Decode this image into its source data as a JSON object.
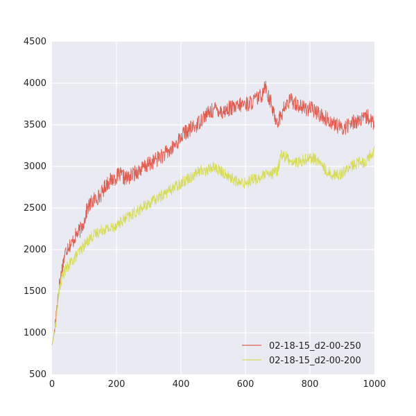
{
  "chart_data": {
    "type": "line",
    "title": "",
    "xlabel": "",
    "ylabel": "",
    "xlim": [
      0,
      1000
    ],
    "ylim": [
      500,
      4500
    ],
    "xticks": [
      "0",
      "200",
      "400",
      "600",
      "800",
      "1000"
    ],
    "yticks": [
      "500",
      "1000",
      "1500",
      "2000",
      "2500",
      "3000",
      "3500",
      "4000",
      "4500"
    ],
    "grid": true,
    "legend_position": "bottom-right",
    "background": "#EAEAF2",
    "series": [
      {
        "name": "02-18-15_d2-00-250",
        "color": "#E05D50",
        "x": [
          0,
          5,
          10,
          15,
          20,
          30,
          40,
          50,
          60,
          70,
          80,
          90,
          100,
          110,
          120,
          130,
          150,
          170,
          190,
          210,
          230,
          250,
          270,
          290,
          310,
          330,
          350,
          370,
          390,
          410,
          430,
          450,
          470,
          490,
          510,
          530,
          550,
          570,
          590,
          610,
          630,
          650,
          660,
          670,
          680,
          690,
          700,
          710,
          720,
          740,
          760,
          780,
          800,
          820,
          840,
          860,
          880,
          900,
          920,
          940,
          960,
          980,
          1000
        ],
        "y": [
          850,
          950,
          1100,
          1300,
          1500,
          1750,
          1950,
          2050,
          2060,
          2150,
          2200,
          2250,
          2350,
          2500,
          2550,
          2600,
          2650,
          2800,
          2850,
          2900,
          2850,
          2900,
          2950,
          3000,
          3050,
          3100,
          3150,
          3200,
          3300,
          3400,
          3450,
          3500,
          3600,
          3650,
          3700,
          3650,
          3700,
          3700,
          3750,
          3750,
          3800,
          3850,
          4000,
          3850,
          3750,
          3600,
          3550,
          3600,
          3700,
          3800,
          3750,
          3700,
          3700,
          3650,
          3600,
          3550,
          3500,
          3450,
          3500,
          3550,
          3550,
          3600,
          3500
        ]
      },
      {
        "name": "02-18-15_d2-00-200",
        "color": "#D6DC5A",
        "x": [
          0,
          5,
          10,
          15,
          20,
          30,
          40,
          50,
          60,
          80,
          100,
          120,
          140,
          160,
          180,
          200,
          220,
          240,
          260,
          280,
          300,
          320,
          340,
          360,
          380,
          400,
          420,
          440,
          460,
          480,
          500,
          520,
          540,
          560,
          580,
          600,
          620,
          640,
          660,
          680,
          700,
          710,
          730,
          750,
          770,
          790,
          810,
          830,
          850,
          870,
          890,
          910,
          930,
          950,
          970,
          990,
          1000
        ],
        "y": [
          850,
          950,
          1050,
          1250,
          1450,
          1650,
          1750,
          1800,
          1850,
          1950,
          2050,
          2150,
          2200,
          2250,
          2250,
          2300,
          2350,
          2400,
          2450,
          2500,
          2550,
          2600,
          2650,
          2700,
          2750,
          2800,
          2850,
          2900,
          2950,
          2950,
          3000,
          2950,
          2900,
          2850,
          2800,
          2800,
          2850,
          2850,
          2900,
          2900,
          2950,
          3150,
          3100,
          3050,
          3050,
          3100,
          3100,
          3050,
          2950,
          2900,
          2900,
          2950,
          3000,
          3050,
          3050,
          3150,
          3200
        ]
      }
    ]
  }
}
